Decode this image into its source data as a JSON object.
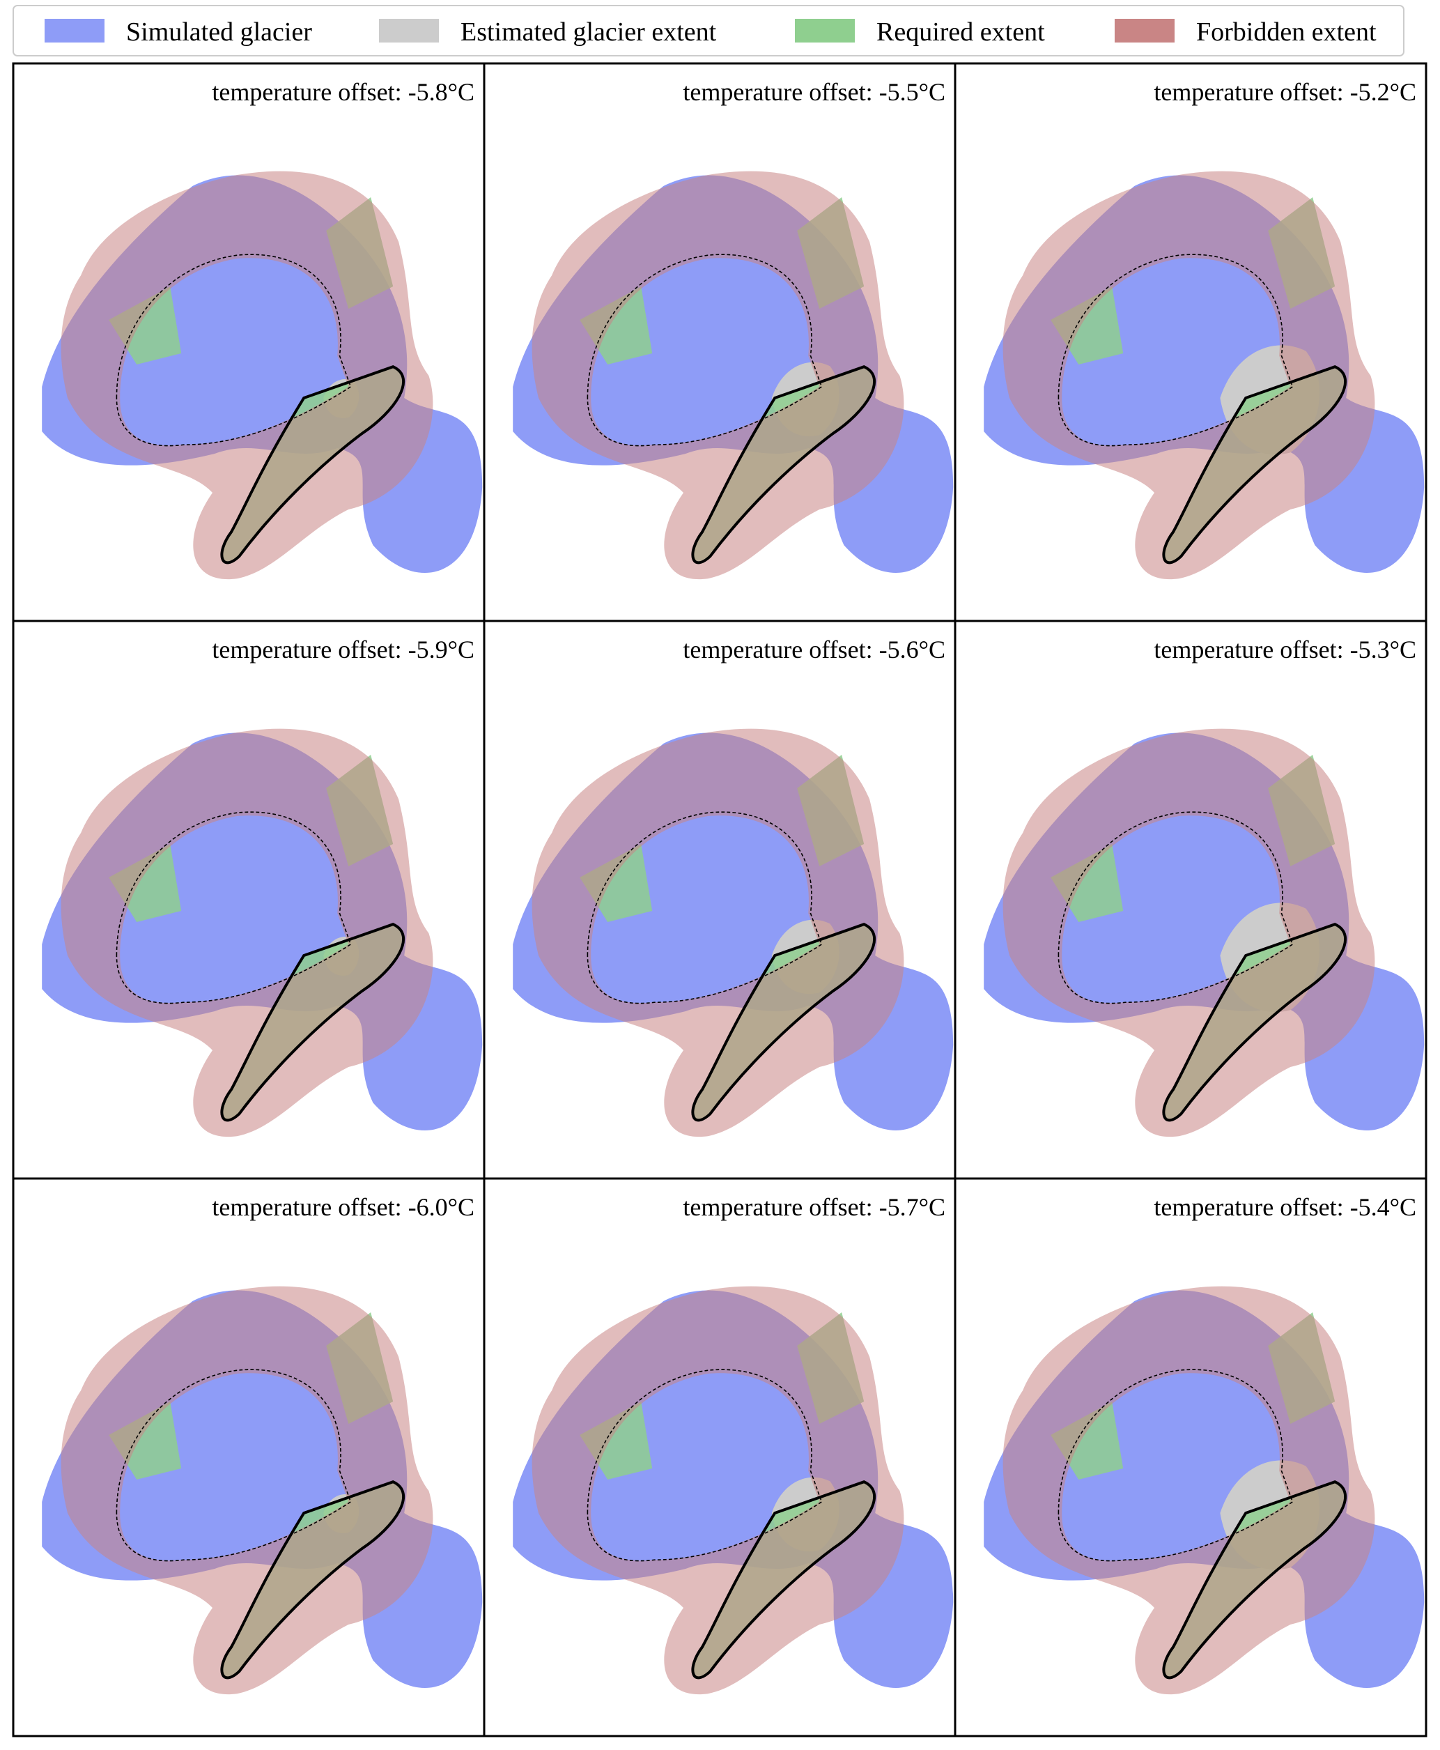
{
  "legend": {
    "items": [
      {
        "label": "Simulated glacier",
        "color": "#8e9cf7"
      },
      {
        "label": "Estimated glacier extent",
        "color": "#cccccc"
      },
      {
        "label": "Required extent",
        "color": "#8fcf8f"
      },
      {
        "label": "Forbidden extent",
        "color": "#c98585"
      }
    ]
  },
  "panels": [
    {
      "title": "temperature offset: -5.8°C"
    },
    {
      "title": "temperature offset: -5.5°C"
    },
    {
      "title": "temperature offset: -5.2°C"
    },
    {
      "title": "temperature offset: -5.9°C"
    },
    {
      "title": "temperature offset: -5.6°C"
    },
    {
      "title": "temperature offset: -5.3°C"
    },
    {
      "title": "temperature offset: -6.0°C"
    },
    {
      "title": "temperature offset: -5.7°C"
    },
    {
      "title": "temperature offset: -5.4°C"
    }
  ]
}
